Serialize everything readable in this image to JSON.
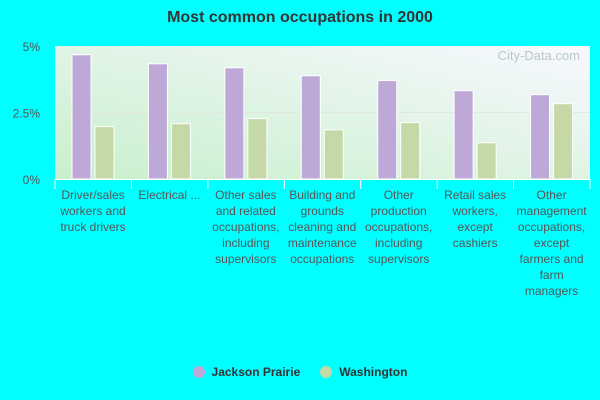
{
  "chart_data": {
    "type": "bar",
    "title": "Most common occupations in 2000",
    "categories": [
      "Driver/sales workers and truck drivers",
      "Electrical ...",
      "Other sales and related occupations, including supervisors",
      "Building and grounds cleaning and maintenance occupations",
      "Other production occupations, including supervisors",
      "Retail sales workers, except cashiers",
      "Other management occupations, except farmers and farm managers"
    ],
    "series": [
      {
        "name": "Jackson Prairie",
        "color": "#bea8d8",
        "values": [
          4.67,
          4.33,
          4.18,
          3.88,
          3.7,
          3.32,
          3.17
        ]
      },
      {
        "name": "Washington",
        "color": "#c4d8a8",
        "values": [
          1.97,
          2.08,
          2.27,
          1.85,
          2.12,
          1.36,
          2.83
        ]
      }
    ],
    "yticks": [
      "0%",
      "2.5%",
      "5%"
    ],
    "ylim": [
      0,
      5
    ],
    "unit": "%",
    "legend": "bottom",
    "watermark": "City-Data.com"
  }
}
